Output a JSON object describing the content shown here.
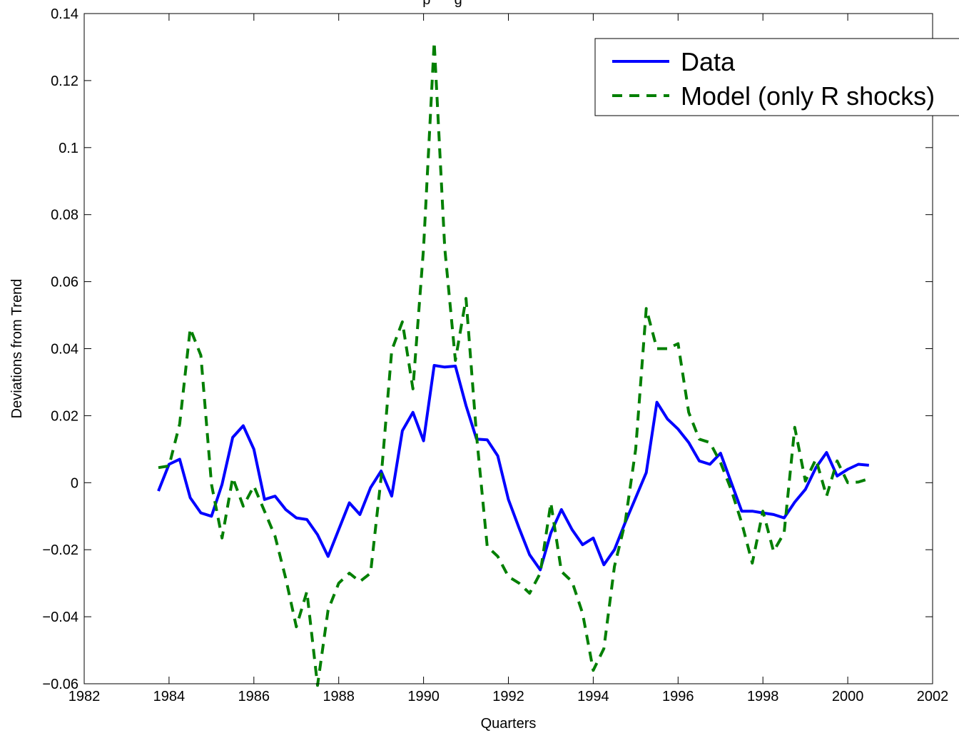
{
  "chart_data": {
    "type": "line",
    "title": "",
    "title_fragment": "p      g",
    "xlabel": "Quarters",
    "ylabel": "Deviations from Trend",
    "xlim": [
      1982,
      2002
    ],
    "ylim": [
      -0.06,
      0.14
    ],
    "x_ticks": [
      1982,
      1984,
      1986,
      1988,
      1990,
      1992,
      1994,
      1996,
      1998,
      2000,
      2002
    ],
    "x_tick_labels": [
      "1982",
      "1984",
      "1986",
      "1988",
      "1990",
      "1992",
      "1994",
      "1996",
      "1998",
      "2000",
      "2002"
    ],
    "y_ticks": [
      -0.06,
      -0.04,
      -0.02,
      0,
      0.02,
      0.04,
      0.06,
      0.08,
      0.1,
      0.12,
      0.14
    ],
    "y_tick_labels": [
      "−0.06",
      "−0.04",
      "−0.02",
      "0",
      "0.02",
      "0.04",
      "0.06",
      "0.08",
      "0.1",
      "0.12",
      "0.14"
    ],
    "grid": false,
    "legend_position": "top-right",
    "series": [
      {
        "name": "Data",
        "color": "#0000ff",
        "style": "solid",
        "x": [
          1983.75,
          1984.0,
          1984.25,
          1984.5,
          1984.75,
          1985.0,
          1985.25,
          1985.5,
          1985.75,
          1986.0,
          1986.25,
          1986.5,
          1986.75,
          1987.0,
          1987.25,
          1987.5,
          1987.75,
          1988.0,
          1988.25,
          1988.5,
          1988.75,
          1989.0,
          1989.25,
          1989.5,
          1989.75,
          1990.0,
          1990.25,
          1990.5,
          1990.75,
          1991.0,
          1991.25,
          1991.5,
          1991.75,
          1992.0,
          1992.25,
          1992.5,
          1992.75,
          1993.0,
          1993.25,
          1993.5,
          1993.75,
          1994.0,
          1994.25,
          1994.5,
          1994.75,
          1995.0,
          1995.25,
          1995.5,
          1995.75,
          1996.0,
          1996.25,
          1996.5,
          1996.75,
          1997.0,
          1997.25,
          1997.5,
          1997.75,
          1998.0,
          1998.25,
          1998.5,
          1998.75,
          1999.0,
          1999.25,
          1999.5,
          1999.75,
          2000.0,
          2000.25,
          2000.5
        ],
        "y": [
          -0.0025,
          0.0055,
          0.007,
          -0.0045,
          -0.009,
          -0.01,
          -0.0005,
          0.0135,
          0.017,
          0.01,
          -0.005,
          -0.004,
          -0.008,
          -0.0105,
          -0.011,
          -0.0155,
          -0.022,
          -0.014,
          -0.006,
          -0.0095,
          -0.0015,
          0.0035,
          -0.004,
          0.0155,
          0.021,
          0.0125,
          0.035,
          0.0345,
          0.0348,
          0.023,
          0.013,
          0.0128,
          0.008,
          -0.005,
          -0.0135,
          -0.0215,
          -0.026,
          -0.015,
          -0.008,
          -0.014,
          -0.0185,
          -0.0165,
          -0.0245,
          -0.02,
          -0.012,
          -0.0045,
          0.003,
          0.024,
          0.019,
          0.016,
          0.012,
          0.0065,
          0.0055,
          0.0088,
          0.0002,
          -0.0085,
          -0.0085,
          -0.009,
          -0.0095,
          -0.0105,
          -0.0058,
          -0.002,
          0.0045,
          0.009,
          0.002,
          0.004,
          0.0055,
          0.0052
        ]
      },
      {
        "name": "Model (only R shocks)",
        "color": "#007f00",
        "style": "dashed",
        "x": [
          1983.75,
          1984.0,
          1984.25,
          1984.5,
          1984.75,
          1985.0,
          1985.25,
          1985.5,
          1985.75,
          1986.0,
          1986.25,
          1986.5,
          1986.75,
          1987.0,
          1987.25,
          1987.5,
          1987.75,
          1988.0,
          1988.25,
          1988.5,
          1988.75,
          1989.0,
          1989.25,
          1989.5,
          1989.75,
          1990.0,
          1990.25,
          1990.5,
          1990.75,
          1991.0,
          1991.25,
          1991.5,
          1991.75,
          1992.0,
          1992.25,
          1992.5,
          1992.75,
          1993.0,
          1993.25,
          1993.5,
          1993.75,
          1994.0,
          1994.25,
          1994.5,
          1994.75,
          1995.0,
          1995.25,
          1995.5,
          1995.75,
          1996.0,
          1996.25,
          1996.5,
          1996.75,
          1997.0,
          1997.25,
          1997.5,
          1997.75,
          1998.0,
          1998.25,
          1998.5,
          1998.75,
          1999.0,
          1999.25,
          1999.5,
          1999.75,
          2000.0,
          2000.25,
          2000.5
        ],
        "y": [
          0.0045,
          0.005,
          0.0175,
          0.046,
          0.038,
          -0.0005,
          -0.0165,
          0.0015,
          -0.007,
          -0.001,
          -0.0085,
          -0.016,
          -0.0285,
          -0.043,
          -0.0325,
          -0.0605,
          -0.038,
          -0.03,
          -0.027,
          -0.0295,
          -0.027,
          0.0015,
          0.0395,
          0.048,
          0.028,
          0.07,
          0.1315,
          0.07,
          0.0365,
          0.055,
          0.014,
          -0.019,
          -0.022,
          -0.028,
          -0.03,
          -0.033,
          -0.027,
          -0.006,
          -0.0265,
          -0.0295,
          -0.039,
          -0.056,
          -0.0495,
          -0.025,
          -0.012,
          0.01,
          0.052,
          0.04,
          0.04,
          0.0415,
          0.021,
          0.013,
          0.012,
          0.006,
          -0.002,
          -0.012,
          -0.024,
          -0.0085,
          -0.0205,
          -0.015,
          0.0165,
          0.0005,
          0.007,
          -0.004,
          0.0065,
          0.0,
          0.0002,
          0.0012
        ]
      }
    ]
  }
}
